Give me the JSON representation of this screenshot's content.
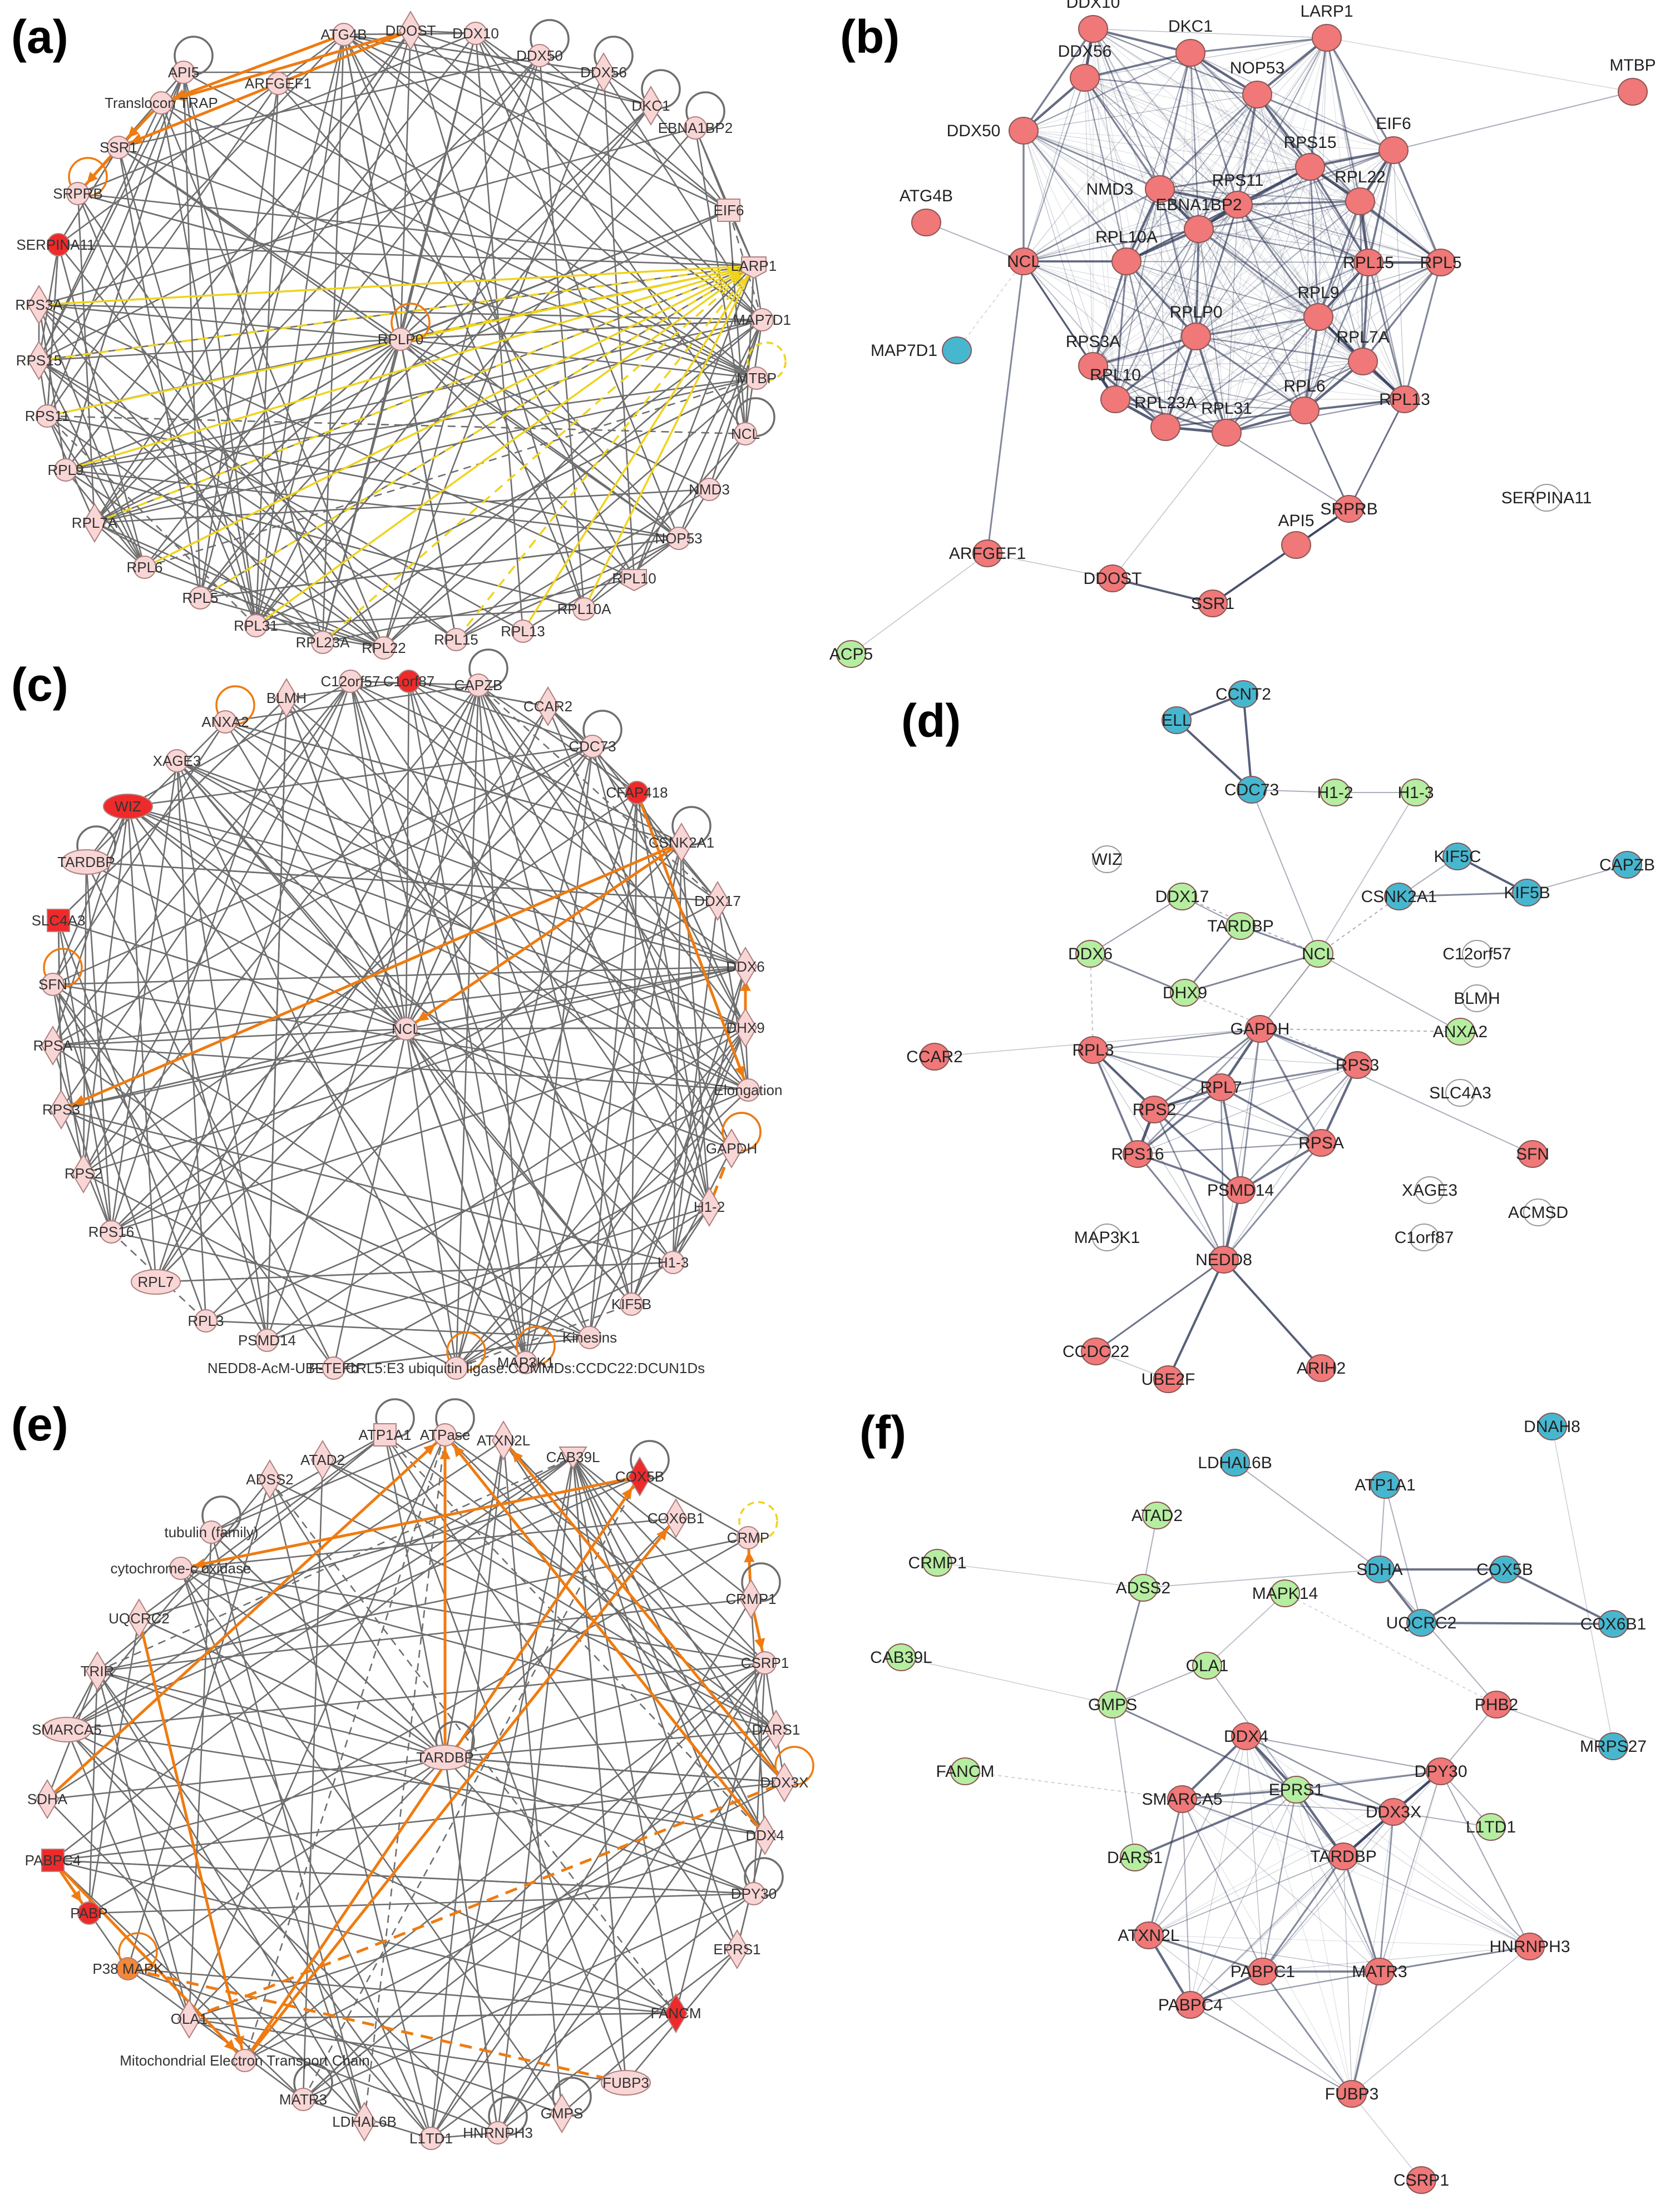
{
  "panel_labels": [
    "(a)",
    "(b)",
    "(c)",
    "(d)",
    "(e)",
    "(f)"
  ],
  "colors": {
    "ipa_node_fill": "#f9d6d6",
    "ipa_node_stroke": "#b08080",
    "ipa_red": "#ee2a2a",
    "ipa_orange_node": "#f2883a",
    "ipa_edge": "#6e6e6e",
    "ipa_orange_edge": "#ef7b11",
    "ipa_yellow_edge": "#efd31c",
    "string_red": "#f07878",
    "string_cyan": "#47b7cf",
    "string_green": "#b5eea0",
    "string_white": "#ffffff",
    "string_edge": "#2d3656"
  },
  "panels": [
    {
      "id": "a",
      "style": "ipa",
      "nodes": [
        {
          "label": "ATG4B",
          "shape": "circle",
          "color": "pink"
        },
        {
          "label": "DDOST",
          "shape": "diamond",
          "color": "pink"
        },
        {
          "label": "ARFGEF1",
          "shape": "circle",
          "color": "pink"
        },
        {
          "label": "API5",
          "shape": "circle",
          "color": "pink"
        },
        {
          "label": "Translocon TRAP",
          "shape": "circle",
          "color": "pink"
        },
        {
          "label": "SSR1",
          "shape": "circle",
          "color": "pink"
        },
        {
          "label": "SRPRB",
          "shape": "circle",
          "color": "pink"
        },
        {
          "label": "SERPINA11",
          "shape": "circle",
          "color": "red"
        },
        {
          "label": "RPS3A",
          "shape": "diamond",
          "color": "pink"
        },
        {
          "label": "RPS15",
          "shape": "diamond",
          "color": "pink"
        },
        {
          "label": "RPS11",
          "shape": "circle",
          "color": "pink"
        },
        {
          "label": "RPL9",
          "shape": "circle",
          "color": "pink"
        },
        {
          "label": "RPL7A",
          "shape": "diamond",
          "color": "pink"
        },
        {
          "label": "RPL6",
          "shape": "circle",
          "color": "pink"
        },
        {
          "label": "RPL5",
          "shape": "circle",
          "color": "pink"
        },
        {
          "label": "RPL31",
          "shape": "circle",
          "color": "pink"
        },
        {
          "label": "RPL23A",
          "shape": "circle",
          "color": "pink"
        },
        {
          "label": "RPL22",
          "shape": "circle",
          "color": "pink"
        },
        {
          "label": "RPL15",
          "shape": "circle",
          "color": "pink"
        },
        {
          "label": "RPL13",
          "shape": "circle",
          "color": "pink"
        },
        {
          "label": "RPL10A",
          "shape": "circle",
          "color": "pink"
        },
        {
          "label": "RPL10",
          "shape": "pentagon",
          "color": "pink"
        },
        {
          "label": "NOP53",
          "shape": "circle",
          "color": "pink"
        },
        {
          "label": "NMD3",
          "shape": "circle",
          "color": "pink"
        },
        {
          "label": "NCL",
          "shape": "circle",
          "color": "pink"
        },
        {
          "label": "MTBP",
          "shape": "circle",
          "color": "pink"
        },
        {
          "label": "MAP7D1",
          "shape": "circle",
          "color": "pink"
        },
        {
          "label": "LARP1",
          "shape": "pentagon",
          "color": "pink"
        },
        {
          "label": "EIF6",
          "shape": "square",
          "color": "pink"
        },
        {
          "label": "EBNA1BP2",
          "shape": "circle",
          "color": "pink"
        },
        {
          "label": "DKC1",
          "shape": "diamond",
          "color": "pink"
        },
        {
          "label": "DDX56",
          "shape": "diamond",
          "color": "pink"
        },
        {
          "label": "DDX50",
          "shape": "circle",
          "color": "pink"
        },
        {
          "label": "DDX10",
          "shape": "circle",
          "color": "pink"
        },
        {
          "label": "RPLP0",
          "shape": "circle",
          "color": "pink"
        }
      ]
    },
    {
      "id": "b",
      "style": "string",
      "nodes": [
        {
          "label": "DDX10",
          "color": "red"
        },
        {
          "label": "DKC1",
          "color": "red"
        },
        {
          "label": "LARP1",
          "color": "red"
        },
        {
          "label": "MTBP",
          "color": "red"
        },
        {
          "label": "DDX56",
          "color": "red"
        },
        {
          "label": "NOP53",
          "color": "red"
        },
        {
          "label": "DDX50",
          "color": "red"
        },
        {
          "label": "EIF6",
          "color": "red"
        },
        {
          "label": "RPS15",
          "color": "red"
        },
        {
          "label": "NMD3",
          "color": "red"
        },
        {
          "label": "RPS11",
          "color": "red"
        },
        {
          "label": "RPL22",
          "color": "red"
        },
        {
          "label": "ATG4B",
          "color": "red"
        },
        {
          "label": "EBNA1BP2",
          "color": "red"
        },
        {
          "label": "NCL",
          "color": "red"
        },
        {
          "label": "RPL10A",
          "color": "red"
        },
        {
          "label": "RPL15",
          "color": "red"
        },
        {
          "label": "RPL5",
          "color": "red"
        },
        {
          "label": "RPL9",
          "color": "red"
        },
        {
          "label": "MAP7D1",
          "color": "cyan"
        },
        {
          "label": "RPLP0",
          "color": "red"
        },
        {
          "label": "RPL7A",
          "color": "red"
        },
        {
          "label": "RPS3A",
          "color": "red"
        },
        {
          "label": "RPL10",
          "color": "red"
        },
        {
          "label": "RPL6",
          "color": "red"
        },
        {
          "label": "RPL13",
          "color": "red"
        },
        {
          "label": "RPL23A",
          "color": "red"
        },
        {
          "label": "RPL31",
          "color": "red"
        },
        {
          "label": "SRPRB",
          "color": "red"
        },
        {
          "label": "SERPINA11",
          "color": "white"
        },
        {
          "label": "ARFGEF1",
          "color": "red"
        },
        {
          "label": "API5",
          "color": "red"
        },
        {
          "label": "DDOST",
          "color": "red"
        },
        {
          "label": "SSR1",
          "color": "red"
        },
        {
          "label": "ACP5",
          "color": "green"
        }
      ]
    },
    {
      "id": "c",
      "style": "ipa",
      "nodes": [
        {
          "label": "BLMH",
          "shape": "diamond",
          "color": "pink"
        },
        {
          "label": "C12orf57",
          "shape": "circle",
          "color": "pink"
        },
        {
          "label": "C1orf87",
          "shape": "circle",
          "color": "red"
        },
        {
          "label": "CAPZB",
          "shape": "circle",
          "color": "pink"
        },
        {
          "label": "CCAR2",
          "shape": "diamond",
          "color": "pink"
        },
        {
          "label": "CDC73",
          "shape": "circle",
          "color": "pink"
        },
        {
          "label": "CFAP418",
          "shape": "circle",
          "color": "red"
        },
        {
          "label": "CSNK2A1",
          "shape": "diamond",
          "color": "pink"
        },
        {
          "label": "DDX17",
          "shape": "diamond",
          "color": "pink"
        },
        {
          "label": "DDX6",
          "shape": "diamond",
          "color": "pink"
        },
        {
          "label": "DHX9",
          "shape": "diamond",
          "color": "pink"
        },
        {
          "label": "Elongation",
          "shape": "circle",
          "color": "pink"
        },
        {
          "label": "GAPDH",
          "shape": "diamond",
          "color": "pink"
        },
        {
          "label": "H1-2",
          "shape": "diamond",
          "color": "pink"
        },
        {
          "label": "H1-3",
          "shape": "circle",
          "color": "pink"
        },
        {
          "label": "KIF5B",
          "shape": "circle",
          "color": "pink"
        },
        {
          "label": "Kinesins",
          "shape": "circle",
          "color": "pink"
        },
        {
          "label": "MAP3K1",
          "shape": "circle",
          "color": "pink"
        },
        {
          "label": "NEDD8-AcM-UBE2F:CRL5:E3 ubiquitin ligase:COMMDs:CCDC22:DCUN1Ds",
          "shape": "circle",
          "color": "pink"
        },
        {
          "label": "P-TEFb",
          "shape": "circle",
          "color": "pink"
        },
        {
          "label": "PSMD14",
          "shape": "circle",
          "color": "pink"
        },
        {
          "label": "RPL3",
          "shape": "circle",
          "color": "pink"
        },
        {
          "label": "RPL7",
          "shape": "ellipse",
          "color": "pink"
        },
        {
          "label": "RPS16",
          "shape": "circle",
          "color": "pink"
        },
        {
          "label": "RPS2",
          "shape": "diamond",
          "color": "pink"
        },
        {
          "label": "RPS3",
          "shape": "diamond",
          "color": "pink"
        },
        {
          "label": "RPSA",
          "shape": "diamond",
          "color": "pink"
        },
        {
          "label": "SFN",
          "shape": "circle",
          "color": "pink"
        },
        {
          "label": "SLC4A3",
          "shape": "square",
          "color": "red"
        },
        {
          "label": "TARDBP",
          "shape": "ellipse",
          "color": "pink"
        },
        {
          "label": "WIZ",
          "shape": "ellipse",
          "color": "red"
        },
        {
          "label": "XAGE3",
          "shape": "circle",
          "color": "pink"
        },
        {
          "label": "ANXA2",
          "shape": "circle",
          "color": "pink"
        },
        {
          "label": "NCL",
          "shape": "circle",
          "color": "pink"
        }
      ]
    },
    {
      "id": "d",
      "style": "string",
      "nodes": [
        {
          "label": "ELL",
          "color": "cyan"
        },
        {
          "label": "CCNT2",
          "color": "cyan"
        },
        {
          "label": "CDC73",
          "color": "cyan"
        },
        {
          "label": "H1-2",
          "color": "green"
        },
        {
          "label": "H1-3",
          "color": "green"
        },
        {
          "label": "WIZ",
          "color": "white"
        },
        {
          "label": "KIF5C",
          "color": "cyan"
        },
        {
          "label": "CAPZB",
          "color": "cyan"
        },
        {
          "label": "KIF5B",
          "color": "cyan"
        },
        {
          "label": "CSNK2A1",
          "color": "cyan"
        },
        {
          "label": "DDX17",
          "color": "green"
        },
        {
          "label": "TARDBP",
          "color": "green"
        },
        {
          "label": "C12orf57",
          "color": "white"
        },
        {
          "label": "DDX6",
          "color": "green"
        },
        {
          "label": "NCL",
          "color": "green"
        },
        {
          "label": "DHX9",
          "color": "green"
        },
        {
          "label": "BLMH",
          "color": "white"
        },
        {
          "label": "ANXA2",
          "color": "green"
        },
        {
          "label": "CCAR2",
          "color": "red"
        },
        {
          "label": "GAPDH",
          "color": "red"
        },
        {
          "label": "RPL3",
          "color": "red"
        },
        {
          "label": "RPS3",
          "color": "red"
        },
        {
          "label": "SLC4A3",
          "color": "white"
        },
        {
          "label": "RPL7",
          "color": "red"
        },
        {
          "label": "RPS2",
          "color": "red"
        },
        {
          "label": "RPSA",
          "color": "red"
        },
        {
          "label": "RPS16",
          "color": "red"
        },
        {
          "label": "SFN",
          "color": "red"
        },
        {
          "label": "XAGE3",
          "color": "white"
        },
        {
          "label": "PSMD14",
          "color": "red"
        },
        {
          "label": "ACMSD",
          "color": "white"
        },
        {
          "label": "MAP3K1",
          "color": "white"
        },
        {
          "label": "C1orf87",
          "color": "white"
        },
        {
          "label": "NEDD8",
          "color": "red"
        },
        {
          "label": "CCDC22",
          "color": "red"
        },
        {
          "label": "UBE2F",
          "color": "red"
        },
        {
          "label": "ARIH2",
          "color": "red"
        }
      ]
    },
    {
      "id": "e",
      "style": "ipa",
      "nodes": [
        {
          "label": "ADSS2",
          "shape": "diamond",
          "color": "pink"
        },
        {
          "label": "ATAD2",
          "shape": "diamond",
          "color": "pink"
        },
        {
          "label": "ATP1A1",
          "shape": "square",
          "color": "pink"
        },
        {
          "label": "ATPase",
          "shape": "circle",
          "color": "pink"
        },
        {
          "label": "ATXN2L",
          "shape": "diamond",
          "color": "pink"
        },
        {
          "label": "CAB39L",
          "shape": "triangle",
          "color": "pink"
        },
        {
          "label": "COX5B",
          "shape": "diamond",
          "color": "red"
        },
        {
          "label": "COX6B1",
          "shape": "diamond",
          "color": "pink"
        },
        {
          "label": "CRMP",
          "shape": "circle",
          "color": "pink"
        },
        {
          "label": "CRMP1",
          "shape": "diamond",
          "color": "pink"
        },
        {
          "label": "CSRP1",
          "shape": "circle",
          "color": "pink"
        },
        {
          "label": "DARS1",
          "shape": "diamond",
          "color": "pink"
        },
        {
          "label": "DDX3X",
          "shape": "diamond",
          "color": "pink"
        },
        {
          "label": "DDX4",
          "shape": "diamond",
          "color": "pink"
        },
        {
          "label": "DPY30",
          "shape": "circle",
          "color": "pink"
        },
        {
          "label": "EPRS1",
          "shape": "diamond",
          "color": "pink"
        },
        {
          "label": "FANCM",
          "shape": "diamond",
          "color": "red"
        },
        {
          "label": "FUBP3",
          "shape": "ellipse",
          "color": "pink"
        },
        {
          "label": "GMPS",
          "shape": "diamond",
          "color": "pink"
        },
        {
          "label": "HNRNPH3",
          "shape": "circle",
          "color": "pink"
        },
        {
          "label": "L1TD1",
          "shape": "circle",
          "color": "pink"
        },
        {
          "label": "LDHAL6B",
          "shape": "diamond",
          "color": "pink"
        },
        {
          "label": "MATR3",
          "shape": "circle",
          "color": "pink"
        },
        {
          "label": "Mitochondrial Electron Transport Chain",
          "shape": "circle",
          "color": "pink"
        },
        {
          "label": "OLA1",
          "shape": "diamond",
          "color": "pink"
        },
        {
          "label": "P38 MAPK",
          "shape": "circle",
          "color": "orange"
        },
        {
          "label": "PABP",
          "shape": "circle",
          "color": "red"
        },
        {
          "label": "PABPC4",
          "shape": "square",
          "color": "red"
        },
        {
          "label": "SDHA",
          "shape": "diamond",
          "color": "pink"
        },
        {
          "label": "SMARCA5",
          "shape": "ellipse",
          "color": "pink"
        },
        {
          "label": "TRIR",
          "shape": "diamond",
          "color": "pink"
        },
        {
          "label": "UQCRC2",
          "shape": "diamond",
          "color": "pink"
        },
        {
          "label": "cytochrome-c oxidase",
          "shape": "circle",
          "color": "pink"
        },
        {
          "label": "tubulin (family)",
          "shape": "circle",
          "color": "pink"
        },
        {
          "label": "TARDBP",
          "shape": "ellipse",
          "color": "pink"
        }
      ]
    },
    {
      "id": "f",
      "style": "string",
      "nodes": [
        {
          "label": "DNAH8",
          "color": "cyan"
        },
        {
          "label": "LDHAL6B",
          "color": "cyan"
        },
        {
          "label": "ATP1A1",
          "color": "cyan"
        },
        {
          "label": "ATAD2",
          "color": "green"
        },
        {
          "label": "CRMP1",
          "color": "green"
        },
        {
          "label": "SDHA",
          "color": "cyan"
        },
        {
          "label": "COX5B",
          "color": "cyan"
        },
        {
          "label": "ADSS2",
          "color": "green"
        },
        {
          "label": "MAPK14",
          "color": "green"
        },
        {
          "label": "COX6B1",
          "color": "cyan"
        },
        {
          "label": "UQCRC2",
          "color": "cyan"
        },
        {
          "label": "CAB39L",
          "color": "green"
        },
        {
          "label": "OLA1",
          "color": "green"
        },
        {
          "label": "GMPS",
          "color": "green"
        },
        {
          "label": "PHB2",
          "color": "red"
        },
        {
          "label": "DDX4",
          "color": "red"
        },
        {
          "label": "MRPS27",
          "color": "cyan"
        },
        {
          "label": "FANCM",
          "color": "green"
        },
        {
          "label": "DPY30",
          "color": "red"
        },
        {
          "label": "SMARCA5",
          "color": "red"
        },
        {
          "label": "EPRS1",
          "color": "green"
        },
        {
          "label": "DDX3X",
          "color": "red"
        },
        {
          "label": "L1TD1",
          "color": "green"
        },
        {
          "label": "DARS1",
          "color": "green"
        },
        {
          "label": "TARDBP",
          "color": "red"
        },
        {
          "label": "ATXN2L",
          "color": "red"
        },
        {
          "label": "HNRNPH3",
          "color": "red"
        },
        {
          "label": "PABPC1",
          "color": "red"
        },
        {
          "label": "MATR3",
          "color": "red"
        },
        {
          "label": "PABPC4",
          "color": "red"
        },
        {
          "label": "FUBP3",
          "color": "red"
        },
        {
          "label": "CSRP1",
          "color": "red"
        }
      ]
    }
  ]
}
